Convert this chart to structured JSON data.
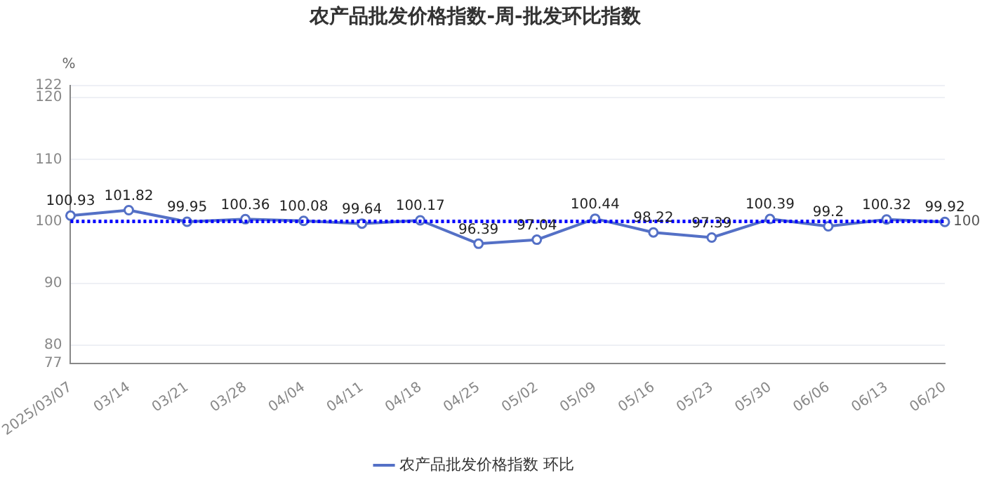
{
  "chart_data": {
    "type": "line",
    "title": "农产品批发价格指数-周-批发环比指数",
    "ylabel": "%",
    "categories": [
      "2025/03/07",
      "03/14",
      "03/21",
      "03/28",
      "04/04",
      "04/11",
      "04/18",
      "04/25",
      "05/02",
      "05/09",
      "05/16",
      "05/23",
      "05/30",
      "06/06",
      "06/13",
      "06/20"
    ],
    "series": [
      {
        "name": "农产品批发价格指数 环比",
        "color": "#5470c6",
        "values": [
          100.93,
          101.82,
          99.95,
          100.36,
          100.08,
          99.64,
          100.17,
          96.39,
          97.04,
          100.44,
          98.22,
          97.39,
          100.39,
          99.2,
          100.32,
          99.92
        ]
      }
    ],
    "ylim": [
      77,
      122
    ],
    "yticks": [
      77,
      80,
      90,
      100,
      110,
      120,
      122
    ],
    "ref_lines": [
      {
        "axis": "y",
        "value": 100,
        "label": "100",
        "color": "#0000ff",
        "line_style": "dotted"
      }
    ],
    "data_labels": true,
    "grid": "y",
    "legend": "bottom",
    "marker": "circle",
    "line_style": "solid"
  }
}
